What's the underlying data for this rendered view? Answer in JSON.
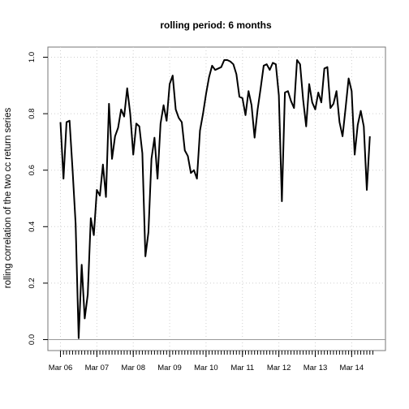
{
  "chart_data": {
    "type": "line",
    "title": "rolling period: 6 months",
    "xlabel": "",
    "ylabel": "rolling correlation of the two cc return series",
    "ylim": [
      0.0,
      1.0
    ],
    "y_ticks": [
      "0.0",
      "0.2",
      "0.4",
      "0.6",
      "0.8",
      "1.0"
    ],
    "x_tick_labels": [
      "Mar 06",
      "Mar 07",
      "Mar 08",
      "Mar 09",
      "Mar 10",
      "Mar 11",
      "Mar 12",
      "Mar 13",
      "Mar 14"
    ],
    "x_start": "2006-03",
    "x_end": "2014-10",
    "grid": true,
    "reference_line": 0.0,
    "series": [
      {
        "color": "#000000",
        "x": [
          "2006-03",
          "2006-04",
          "2006-05",
          "2006-06",
          "2006-07",
          "2006-08",
          "2006-09",
          "2006-10",
          "2006-11",
          "2006-12",
          "2007-01",
          "2007-02",
          "2007-03",
          "2007-04",
          "2007-05",
          "2007-06",
          "2007-07",
          "2007-08",
          "2007-09",
          "2007-10",
          "2007-11",
          "2007-12",
          "2008-01",
          "2008-02",
          "2008-03",
          "2008-04",
          "2008-05",
          "2008-06",
          "2008-07",
          "2008-08",
          "2008-09",
          "2008-10",
          "2008-11",
          "2008-12",
          "2009-01",
          "2009-02",
          "2009-03",
          "2009-04",
          "2009-05",
          "2009-06",
          "2009-07",
          "2009-08",
          "2009-09",
          "2009-10",
          "2009-11",
          "2009-12",
          "2010-01",
          "2010-02",
          "2010-03",
          "2010-04",
          "2010-05",
          "2010-06",
          "2010-07",
          "2010-08",
          "2010-09",
          "2010-10",
          "2010-11",
          "2010-12",
          "2011-01",
          "2011-02",
          "2011-03",
          "2011-04",
          "2011-05",
          "2011-06",
          "2011-07",
          "2011-08",
          "2011-09",
          "2011-10",
          "2011-11",
          "2011-12",
          "2012-01",
          "2012-02",
          "2012-03",
          "2012-04",
          "2012-05",
          "2012-06",
          "2012-07",
          "2012-08",
          "2012-09",
          "2012-10",
          "2012-11",
          "2012-12",
          "2013-01",
          "2013-02",
          "2013-03",
          "2013-04",
          "2013-05",
          "2013-06",
          "2013-07",
          "2013-08",
          "2013-09",
          "2013-10",
          "2013-11",
          "2013-12",
          "2014-01",
          "2014-02",
          "2014-03",
          "2014-04",
          "2014-05",
          "2014-06",
          "2014-07",
          "2014-08",
          "2014-09"
        ],
        "values": [
          0.77,
          0.57,
          0.77,
          0.775,
          0.6,
          0.41,
          0.005,
          0.265,
          0.075,
          0.16,
          0.43,
          0.37,
          0.53,
          0.51,
          0.62,
          0.505,
          0.835,
          0.64,
          0.72,
          0.75,
          0.815,
          0.79,
          0.89,
          0.8,
          0.655,
          0.765,
          0.755,
          0.66,
          0.295,
          0.38,
          0.64,
          0.715,
          0.57,
          0.765,
          0.83,
          0.775,
          0.905,
          0.935,
          0.815,
          0.785,
          0.77,
          0.67,
          0.65,
          0.59,
          0.6,
          0.57,
          0.74,
          0.8,
          0.87,
          0.93,
          0.97,
          0.955,
          0.96,
          0.965,
          0.99,
          0.99,
          0.985,
          0.975,
          0.94,
          0.86,
          0.855,
          0.795,
          0.88,
          0.83,
          0.715,
          0.815,
          0.89,
          0.97,
          0.975,
          0.955,
          0.98,
          0.975,
          0.865,
          0.49,
          0.875,
          0.88,
          0.845,
          0.82,
          0.99,
          0.975,
          0.85,
          0.755,
          0.905,
          0.84,
          0.815,
          0.875,
          0.84,
          0.96,
          0.965,
          0.82,
          0.835,
          0.88,
          0.77,
          0.72,
          0.82,
          0.925,
          0.88,
          0.655,
          0.76,
          0.81,
          0.755,
          0.53,
          0.72
        ]
      }
    ]
  }
}
